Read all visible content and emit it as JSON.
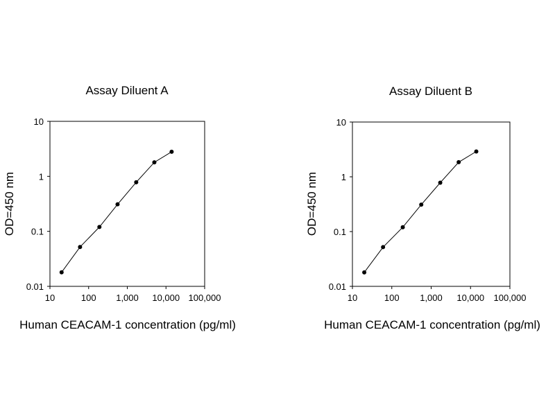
{
  "chart_data": [
    {
      "type": "line",
      "title": "Assay Diluent A",
      "xlabel": "Human CEACAM-1 concentration (pg/ml)",
      "ylabel": "OD=450 nm",
      "xscale": "log",
      "yscale": "log",
      "xlim": [
        10,
        100000
      ],
      "ylim": [
        0.01,
        10
      ],
      "xticks": [
        "10",
        "100",
        "1,000",
        "10,000",
        "100,000"
      ],
      "yticks": [
        "0.01",
        "0.1",
        "1",
        "10"
      ],
      "grid": false,
      "markers": "filled-circle",
      "color": "#000000",
      "series": [
        {
          "x": [
            20,
            60,
            190,
            560,
            1700,
            5000,
            14000
          ],
          "y": [
            0.018,
            0.052,
            0.12,
            0.31,
            0.78,
            1.8,
            2.8
          ]
        }
      ]
    },
    {
      "type": "line",
      "title": "Assay Diluent B",
      "xlabel": "Human CEACAM-1 concentration (pg/ml)",
      "ylabel": "OD=450 nm",
      "xscale": "log",
      "yscale": "log",
      "xlim": [
        10,
        100000
      ],
      "ylim": [
        0.01,
        10
      ],
      "xticks": [
        "10",
        "100",
        "1,000",
        "10,000",
        "100,000"
      ],
      "yticks": [
        "0.01",
        "0.1",
        "1",
        "10"
      ],
      "grid": false,
      "markers": "filled-circle",
      "color": "#000000",
      "series": [
        {
          "x": [
            20,
            60,
            190,
            560,
            1700,
            5000,
            14000
          ],
          "y": [
            0.018,
            0.052,
            0.12,
            0.31,
            0.78,
            1.85,
            2.9
          ]
        }
      ]
    }
  ]
}
